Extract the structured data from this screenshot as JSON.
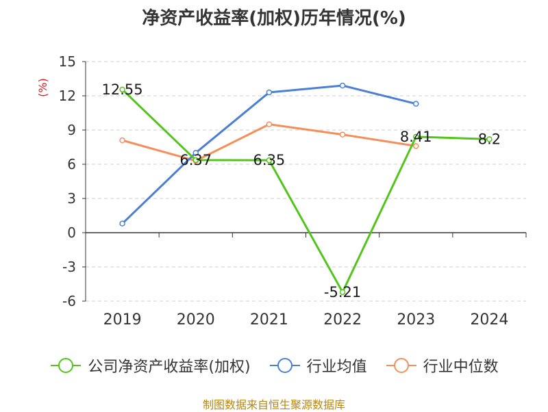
{
  "chart_data": {
    "type": "line",
    "title": "净资产收益率(加权)历年情况(%)",
    "ylabel": "(%)",
    "xlabel": "",
    "categories": [
      "2019",
      "2020",
      "2021",
      "2022",
      "2023",
      "2024"
    ],
    "ylim": [
      -6,
      15
    ],
    "yticks": [
      -6,
      -3,
      0,
      3,
      6,
      9,
      12,
      15
    ],
    "grid": true,
    "legend_position": "bottom",
    "series": [
      {
        "name": "公司净资产收益率(加权)",
        "color": "#52c41a",
        "values": [
          12.55,
          6.37,
          6.35,
          -5.21,
          8.41,
          8.2
        ],
        "labels": [
          "12.55",
          "6.37",
          "6.35",
          "-5.21",
          "8.41",
          "8.2"
        ]
      },
      {
        "name": "行业均值",
        "color": "#4a7fd6",
        "values": [
          0.8,
          7.0,
          12.3,
          12.9,
          11.3,
          null
        ]
      },
      {
        "name": "行业中位数",
        "color": "#f58f5a",
        "values": [
          8.1,
          6.3,
          9.5,
          8.6,
          7.6,
          null
        ]
      }
    ],
    "source": "制图数据来自恒生聚源数据库"
  }
}
